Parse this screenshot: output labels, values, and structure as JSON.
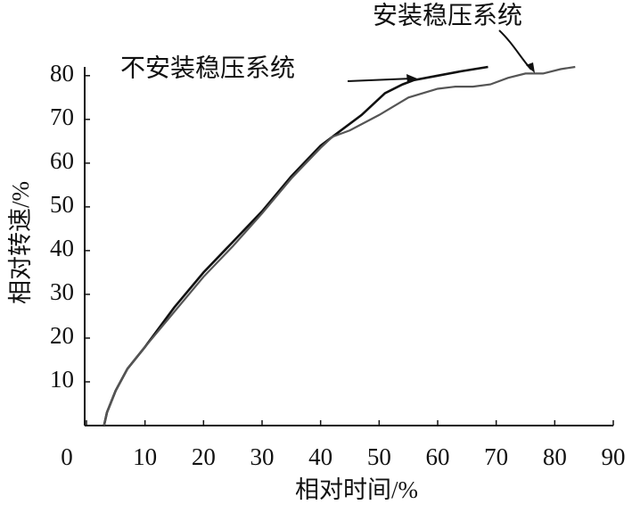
{
  "chart_data": {
    "type": "line",
    "xlabel": "相对时间/%",
    "ylabel": "相对转速/%",
    "xlim": [
      0,
      90
    ],
    "xticks": [
      0,
      10,
      20,
      30,
      40,
      50,
      60,
      70,
      80,
      90
    ],
    "ylim": [
      0,
      82
    ],
    "yticks": [
      10,
      20,
      30,
      40,
      50,
      60,
      70,
      80
    ],
    "grid": false,
    "series": [
      {
        "name": "不安装稳压系统",
        "color": "#111111",
        "x": [
          3,
          3.5,
          5,
          7,
          10,
          15,
          20,
          25,
          30,
          35,
          40,
          42,
          47,
          51,
          54,
          56,
          60,
          64,
          68.6
        ],
        "values": [
          0,
          3,
          8,
          13,
          18,
          27,
          35,
          42,
          49,
          57,
          64,
          66,
          71,
          76,
          78,
          79,
          80,
          81,
          82
        ]
      },
      {
        "name": "安装稳压系统",
        "color": "#555555",
        "x": [
          3,
          3.5,
          5,
          7,
          10,
          15,
          20,
          25,
          30,
          35,
          40,
          42,
          45,
          50,
          55,
          60,
          63,
          66,
          69,
          72,
          75,
          78,
          81,
          83.5
        ],
        "values": [
          0,
          3,
          8,
          13,
          18,
          26,
          34,
          41,
          48.5,
          56.5,
          63.5,
          66,
          67.5,
          71,
          75,
          77,
          77.5,
          77.5,
          78,
          79.5,
          80.5,
          80.5,
          81.5,
          82
        ]
      }
    ]
  }
}
